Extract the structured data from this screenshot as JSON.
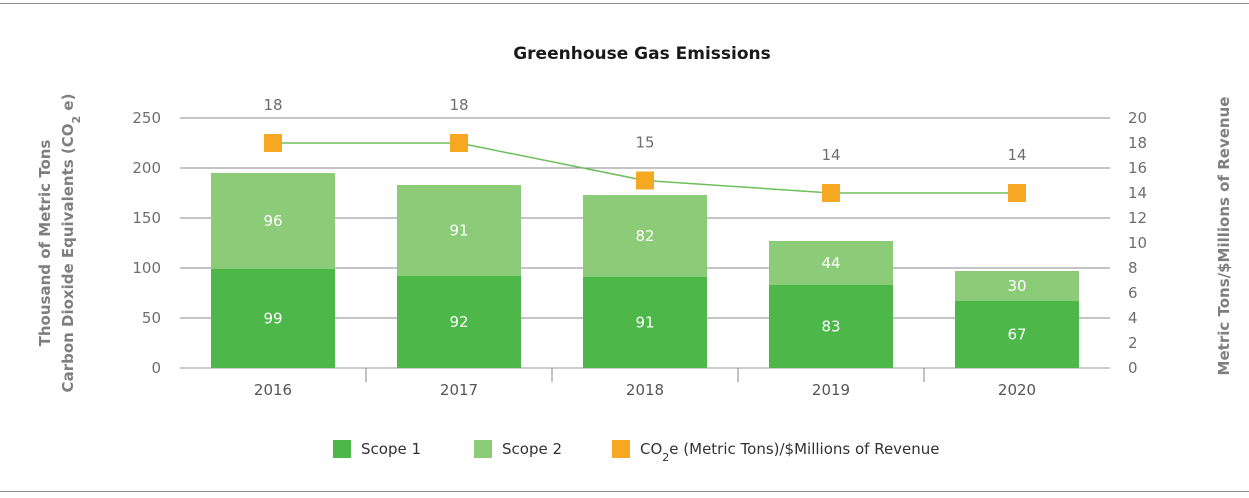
{
  "chart_data": {
    "type": "bar",
    "title": "Greenhouse Gas Emissions",
    "categories": [
      "2016",
      "2017",
      "2018",
      "2019",
      "2020"
    ],
    "stacked": true,
    "series": [
      {
        "name": "Scope 1",
        "values": [
          99,
          92,
          91,
          83,
          67
        ],
        "color": "#4db749",
        "axis": "left"
      },
      {
        "name": "Scope 2",
        "values": [
          96,
          91,
          82,
          44,
          30
        ],
        "color": "#8ccc79",
        "axis": "left"
      },
      {
        "name": "CO2e (Metric Tons)/$Millions of Revenue",
        "values": [
          18,
          18,
          15,
          14,
          14
        ],
        "color": "#f7a823",
        "line_color": "#6dbf5b",
        "kind": "line",
        "axis": "right"
      }
    ],
    "ylabel_left_line1": "Thousand of Metric Tons",
    "ylabel_left_line2_pre": "Carbon Dioxide Equivalents (CO",
    "ylabel_left_line2_sub": "2",
    "ylabel_left_line2_post": " e)",
    "ylabel_right": "Metric Tons/$Millions of Revenue",
    "ylim_left": [
      0,
      250
    ],
    "yticks_left": [
      0,
      50,
      100,
      150,
      200,
      250
    ],
    "ylim_right": [
      0,
      20
    ],
    "yticks_right": [
      0,
      2,
      4,
      6,
      8,
      10,
      12,
      14,
      16,
      18,
      20
    ],
    "grid": true,
    "legend_placement": "bottom-center",
    "legend": [
      {
        "label": "Scope 1",
        "color": "#4db749"
      },
      {
        "label": "Scope 2",
        "color": "#8ccc79"
      },
      {
        "label_pre": "CO",
        "label_sub": "2",
        "label_post": "e (Metric Tons)/$Millions of Revenue",
        "color": "#f7a823"
      }
    ]
  }
}
